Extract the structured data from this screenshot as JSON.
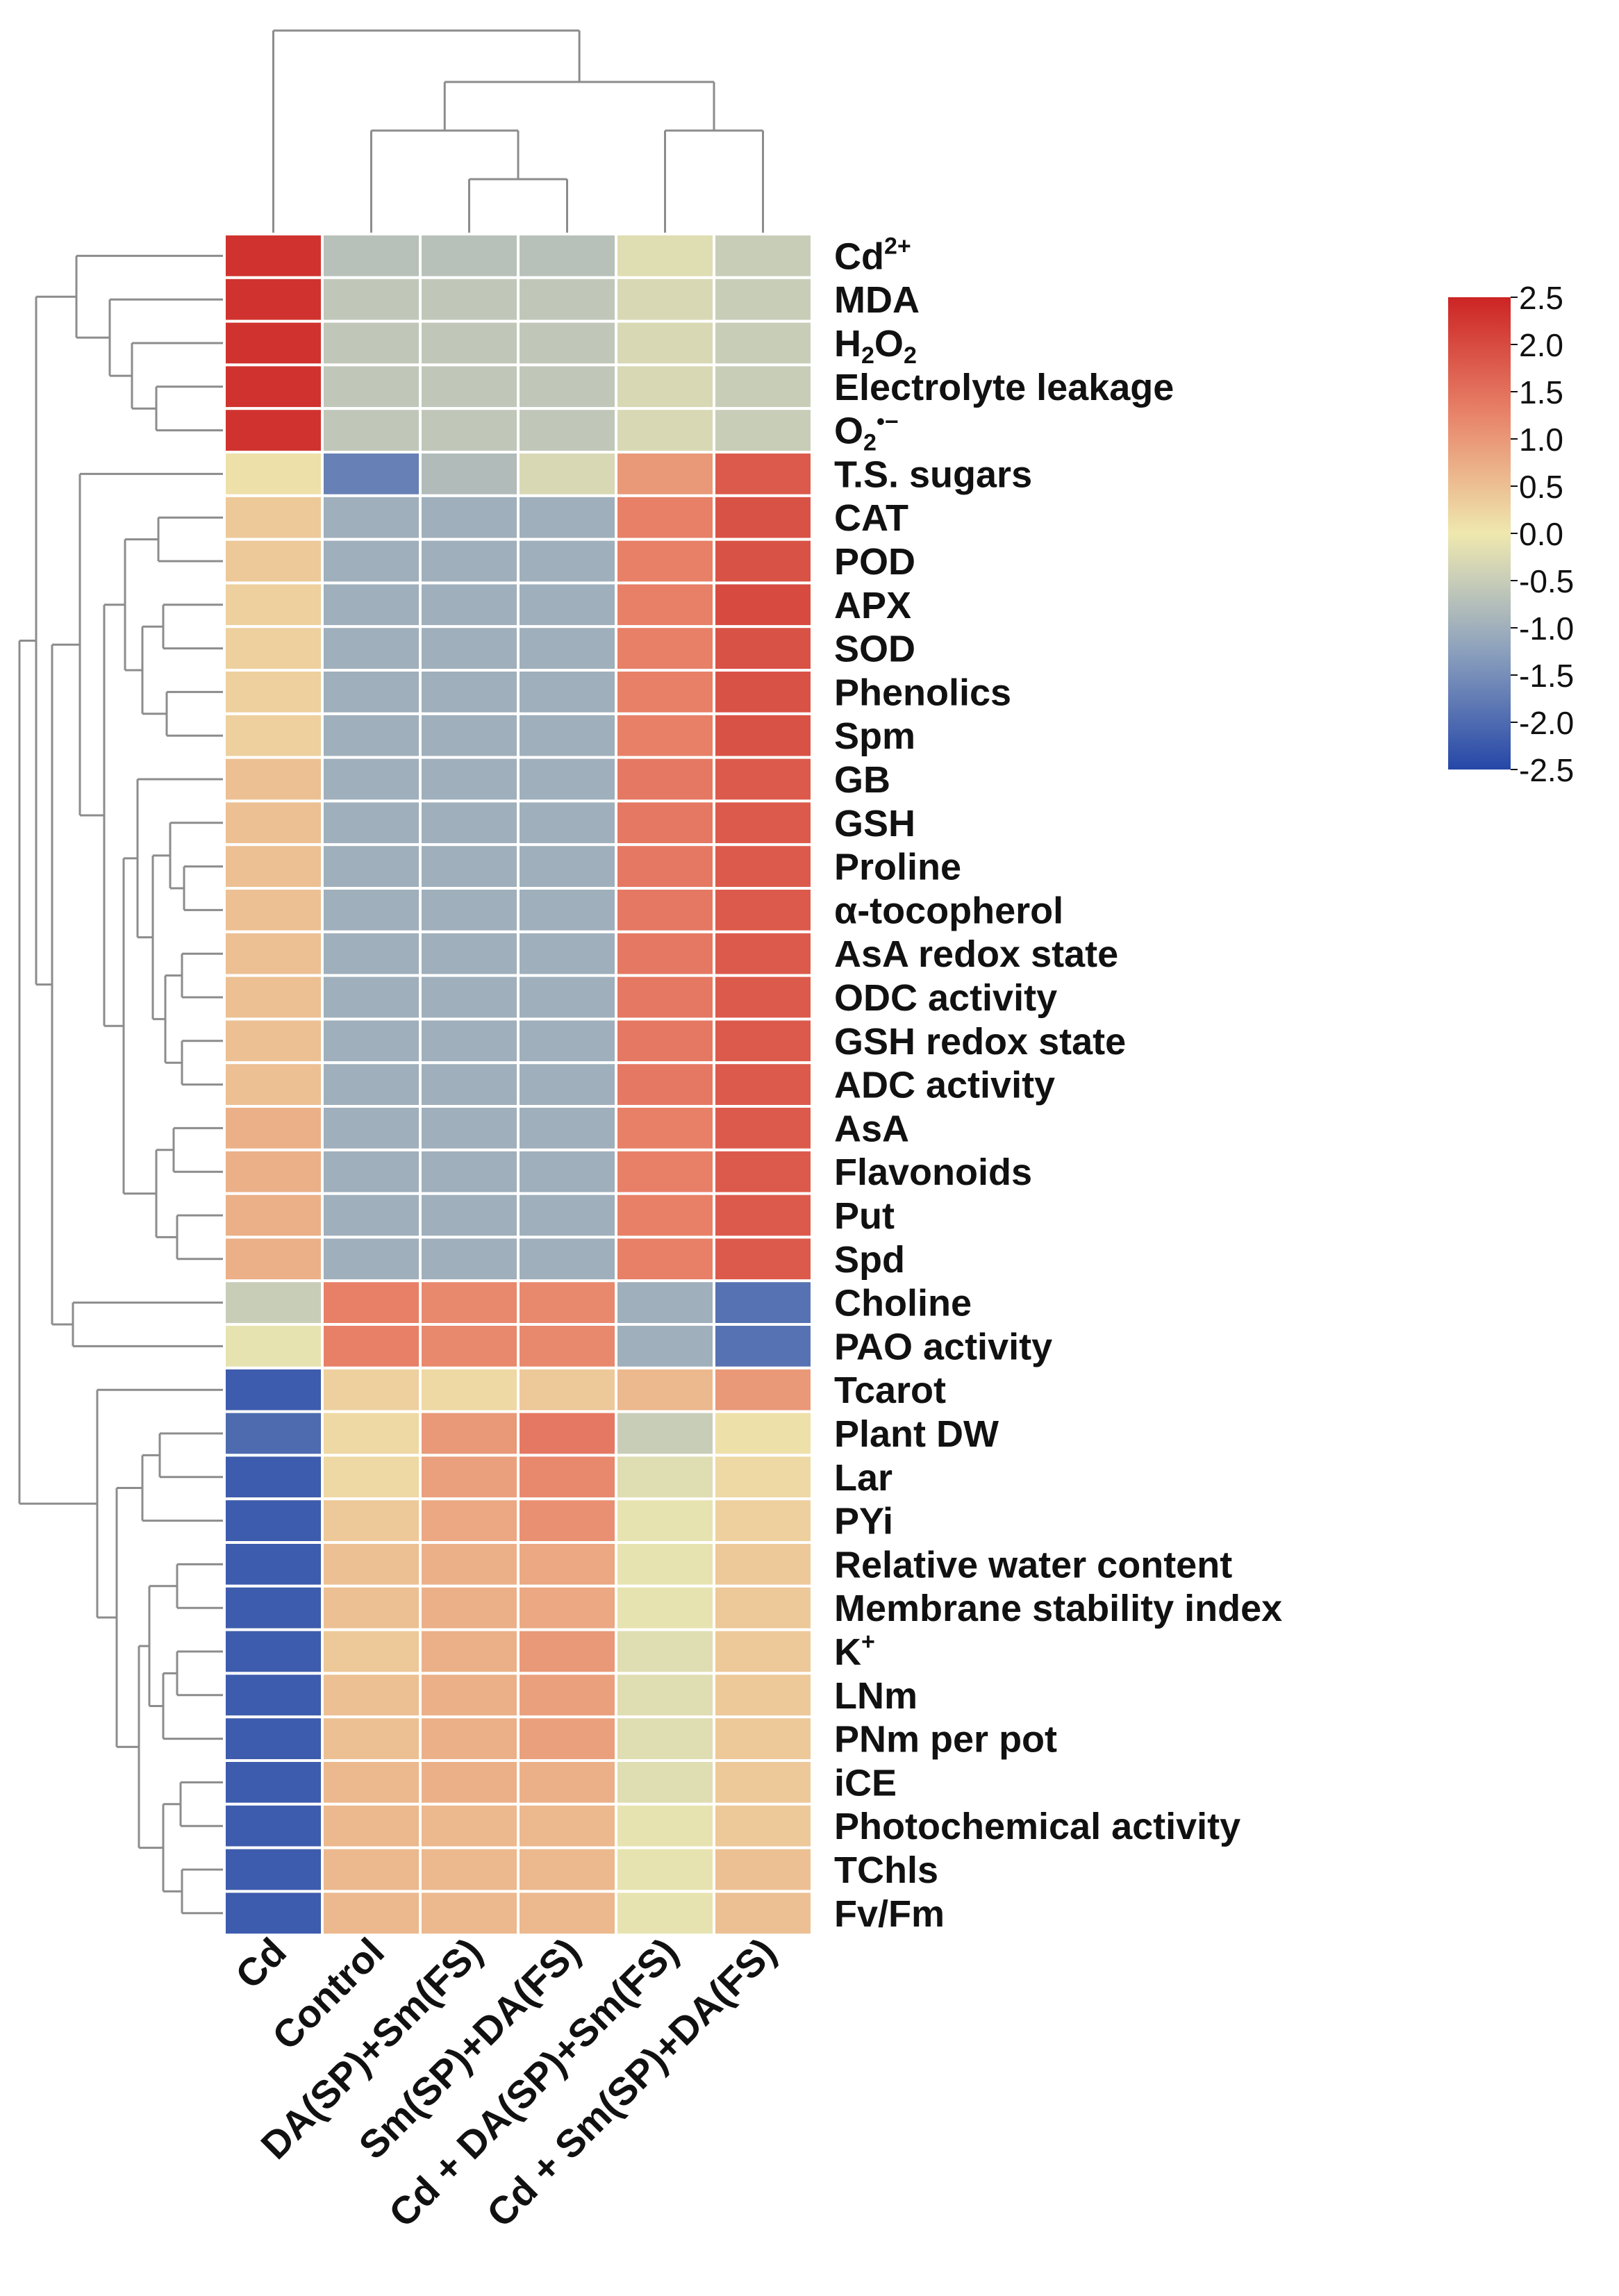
{
  "chart_data": {
    "type": "heatmap",
    "title": "",
    "columns": [
      "Cd",
      "Control",
      "DA(SP)+Sm(FS)",
      "Sm(SP)+DA(FS)",
      "Cd + DA(SP)+Sm(FS)",
      "Cd + Sm(SP)+DA(FS)"
    ],
    "rows": [
      {
        "label": "Cd",
        "sup": "2+",
        "values": [
          2.3,
          -0.7,
          -0.7,
          -0.7,
          -0.2,
          -0.5
        ]
      },
      {
        "label": "MDA",
        "values": [
          2.3,
          -0.6,
          -0.6,
          -0.6,
          -0.3,
          -0.5
        ]
      },
      {
        "label": "H",
        "sub": "2",
        "label2": "O",
        "sub2": "2",
        "values": [
          2.3,
          -0.6,
          -0.6,
          -0.6,
          -0.3,
          -0.5
        ]
      },
      {
        "label": "Electrolyte leakage",
        "values": [
          2.3,
          -0.6,
          -0.6,
          -0.6,
          -0.3,
          -0.5
        ]
      },
      {
        "label": "O",
        "sub": "2",
        "sup": "•−",
        "values": [
          2.3,
          -0.6,
          -0.6,
          -0.6,
          -0.3,
          -0.5
        ]
      },
      {
        "label": "T.S. sugars",
        "values": [
          0.1,
          -1.7,
          -0.8,
          -0.3,
          1.0,
          1.8
        ]
      },
      {
        "label": "CAT",
        "values": [
          0.4,
          -1.0,
          -1.0,
          -1.0,
          1.3,
          1.9
        ]
      },
      {
        "label": "POD",
        "values": [
          0.4,
          -1.0,
          -1.0,
          -1.0,
          1.3,
          1.9
        ]
      },
      {
        "label": "APX",
        "values": [
          0.3,
          -1.0,
          -1.0,
          -1.0,
          1.3,
          2.0
        ]
      },
      {
        "label": "SOD",
        "values": [
          0.3,
          -1.0,
          -1.0,
          -1.0,
          1.3,
          1.9
        ]
      },
      {
        "label": "Phenolics",
        "values": [
          0.3,
          -1.0,
          -1.0,
          -1.0,
          1.3,
          1.9
        ]
      },
      {
        "label": "Spm",
        "values": [
          0.3,
          -1.0,
          -1.0,
          -1.0,
          1.3,
          1.9
        ]
      },
      {
        "label": "GB",
        "values": [
          0.5,
          -1.0,
          -1.0,
          -1.0,
          1.4,
          1.8
        ]
      },
      {
        "label": "GSH",
        "values": [
          0.5,
          -1.0,
          -1.0,
          -1.0,
          1.4,
          1.8
        ]
      },
      {
        "label": "Proline",
        "values": [
          0.5,
          -1.0,
          -1.0,
          -1.0,
          1.4,
          1.8
        ]
      },
      {
        "label": "α-tocopherol",
        "values": [
          0.5,
          -1.0,
          -1.0,
          -1.0,
          1.4,
          1.8
        ]
      },
      {
        "label": "AsA redox state",
        "values": [
          0.5,
          -1.0,
          -1.0,
          -1.0,
          1.4,
          1.8
        ]
      },
      {
        "label": "ODC activity",
        "values": [
          0.5,
          -1.0,
          -1.0,
          -1.0,
          1.4,
          1.8
        ]
      },
      {
        "label": "GSH redox state",
        "values": [
          0.5,
          -1.0,
          -1.0,
          -1.0,
          1.4,
          1.8
        ]
      },
      {
        "label": "ADC activity",
        "values": [
          0.5,
          -1.0,
          -1.0,
          -1.0,
          1.4,
          1.8
        ]
      },
      {
        "label": "AsA",
        "values": [
          0.7,
          -1.0,
          -1.0,
          -1.0,
          1.3,
          1.8
        ]
      },
      {
        "label": "Flavonoids",
        "values": [
          0.7,
          -1.0,
          -1.0,
          -1.0,
          1.3,
          1.8
        ]
      },
      {
        "label": "Put",
        "values": [
          0.7,
          -1.0,
          -1.0,
          -1.0,
          1.3,
          1.8
        ]
      },
      {
        "label": "Spd",
        "values": [
          0.7,
          -1.0,
          -1.0,
          -1.0,
          1.3,
          1.8
        ]
      },
      {
        "label": "Choline",
        "values": [
          -0.5,
          1.3,
          1.2,
          1.2,
          -1.0,
          -1.9
        ]
      },
      {
        "label": "PAO activity",
        "values": [
          -0.1,
          1.3,
          1.2,
          1.2,
          -1.0,
          -1.9
        ]
      },
      {
        "label": "Tcarot",
        "values": [
          -2.2,
          0.3,
          0.2,
          0.4,
          0.6,
          1.0
        ]
      },
      {
        "label": "Plant DW",
        "values": [
          -2.0,
          0.2,
          1.0,
          1.4,
          -0.5,
          0.1
        ]
      },
      {
        "label": "Lar",
        "values": [
          -2.2,
          0.2,
          0.9,
          1.2,
          -0.2,
          0.2
        ]
      },
      {
        "label": "PYi",
        "values": [
          -2.2,
          0.4,
          0.8,
          1.1,
          -0.1,
          0.3
        ]
      },
      {
        "label": "Relative water content",
        "values": [
          -2.2,
          0.5,
          0.7,
          0.8,
          -0.1,
          0.4
        ]
      },
      {
        "label": "Membrane stability index",
        "values": [
          -2.2,
          0.5,
          0.7,
          0.8,
          -0.1,
          0.4
        ]
      },
      {
        "label": "K",
        "sup": "+",
        "values": [
          -2.2,
          0.4,
          0.7,
          1.0,
          -0.2,
          0.4
        ]
      },
      {
        "label": "LNm",
        "values": [
          -2.2,
          0.5,
          0.7,
          0.9,
          -0.2,
          0.4
        ]
      },
      {
        "label": "PNm per pot",
        "values": [
          -2.2,
          0.5,
          0.7,
          0.9,
          -0.2,
          0.4
        ]
      },
      {
        "label": "iCE",
        "values": [
          -2.2,
          0.6,
          0.7,
          0.7,
          -0.2,
          0.4
        ]
      },
      {
        "label": "Photochemical activity",
        "values": [
          -2.2,
          0.6,
          0.6,
          0.6,
          -0.1,
          0.4
        ]
      },
      {
        "label": "TChls",
        "values": [
          -2.2,
          0.6,
          0.6,
          0.6,
          -0.1,
          0.5
        ]
      },
      {
        "label": "Fv/Fm",
        "values": [
          -2.2,
          0.6,
          0.6,
          0.6,
          -0.1,
          0.5
        ]
      }
    ],
    "colorscale": {
      "min": -2.5,
      "max": 2.5,
      "ticks": [
        "2.5",
        "2.0",
        "1.5",
        "1.0",
        "0.5",
        "0.0",
        "-0.5",
        "-1.0",
        "-1.5",
        "-2.0",
        "-2.5"
      ],
      "stops": [
        {
          "value": -2.5,
          "color": "#2647a8"
        },
        {
          "value": -1.25,
          "color": "#8ba0bd"
        },
        {
          "value": -0.5,
          "color": "#c8cdb8"
        },
        {
          "value": 0.0,
          "color": "#efe8ae"
        },
        {
          "value": 1.25,
          "color": "#e8846a"
        },
        {
          "value": 2.5,
          "color": "#cc2424"
        }
      ]
    }
  }
}
